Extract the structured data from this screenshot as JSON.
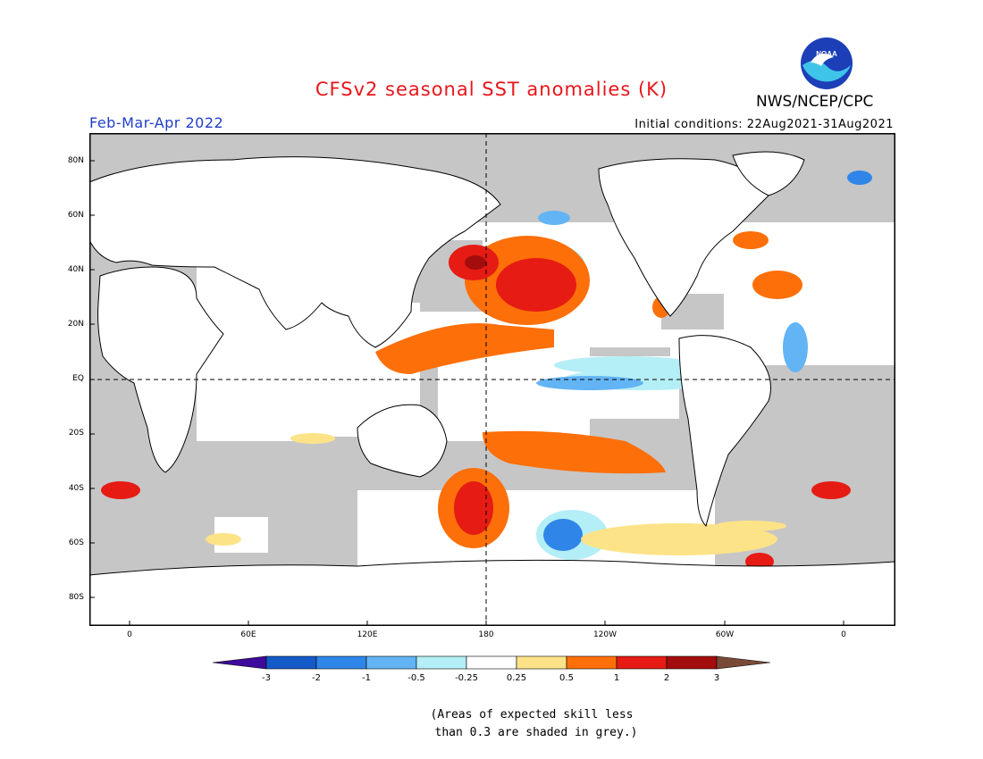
{
  "title": "CFSv2 seasonal SST anomalies (K)",
  "agency": "NWS/NCEP/CPC",
  "period": "Feb-Mar-Apr 2022",
  "initial_conditions": "Initial conditions: 22Aug2021-31Aug2021",
  "logo_text": "NOAA",
  "lat_labels": [
    "80N",
    "60N",
    "40N",
    "20N",
    "EQ",
    "20S",
    "40S",
    "60S",
    "80S"
  ],
  "lon_labels": [
    "0",
    "60E",
    "120E",
    "180",
    "120W",
    "60W",
    "0"
  ],
  "colorbar": {
    "labels": [
      "-3",
      "-2",
      "-1",
      "-0.5",
      "-0.25",
      "0.25",
      "0.5",
      "1",
      "2",
      "3"
    ],
    "colors": [
      "#3d0a9c",
      "#1459c8",
      "#2f86e8",
      "#63b4f4",
      "#b4eef6",
      "#ffffff",
      "#fde388",
      "#fd6f09",
      "#e51b14",
      "#a30d0d",
      "#7a4a38"
    ]
  },
  "note_line1": "(Areas of expected skill less",
  "note_line2": "than 0.3 are shaded in grey.)",
  "map": {
    "land_color": "#ffffff",
    "skill_mask_color": "#c6c6c6",
    "equator_dashed": true,
    "dateline_dashed": true
  }
}
